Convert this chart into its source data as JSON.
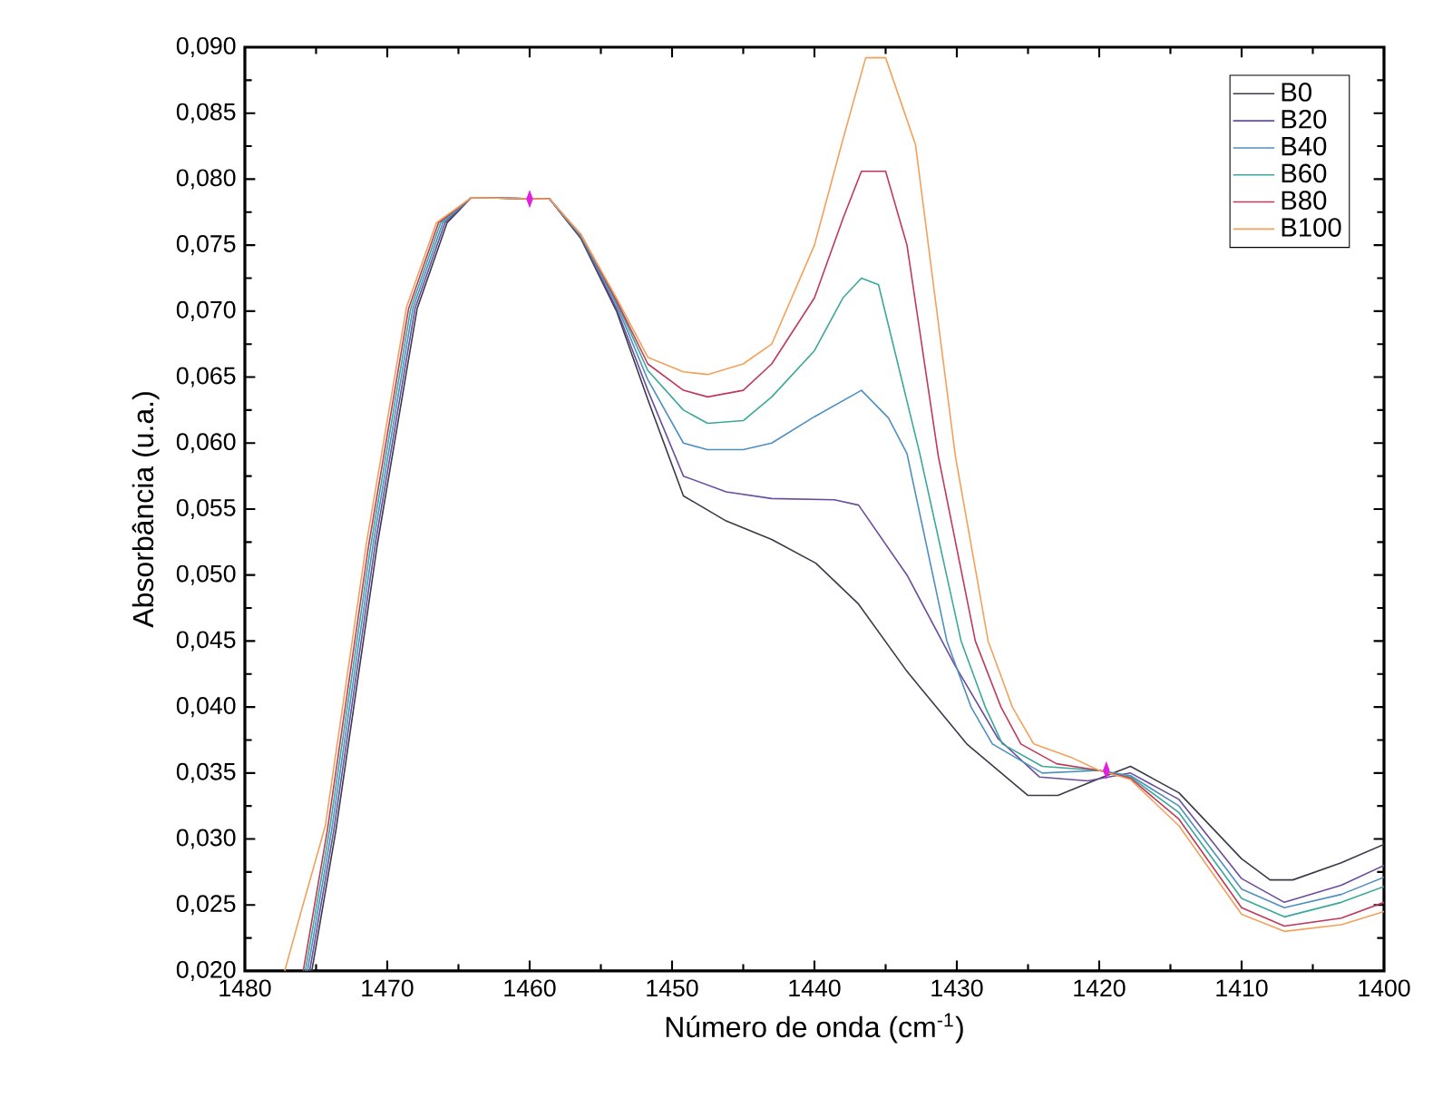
{
  "chart_data": {
    "type": "line",
    "xlabel": "Número de onda (cm$^{-1}$)",
    "ylabel": "Absorbância (u.a.)",
    "xlim": [
      1480,
      1400
    ],
    "ylim": [
      0.02,
      0.09
    ],
    "xticks": [
      1480,
      1470,
      1460,
      1450,
      1440,
      1430,
      1420,
      1410,
      1400
    ],
    "yticks": [
      {
        "value": 0.02,
        "label": "0,020"
      },
      {
        "value": 0.025,
        "label": "0,025"
      },
      {
        "value": 0.03,
        "label": "0,030"
      },
      {
        "value": 0.035,
        "label": "0,035"
      },
      {
        "value": 0.04,
        "label": "0,040"
      },
      {
        "value": 0.045,
        "label": "0,045"
      },
      {
        "value": 0.05,
        "label": "0,050"
      },
      {
        "value": 0.055,
        "label": "0,055"
      },
      {
        "value": 0.06,
        "label": "0,060"
      },
      {
        "value": 0.065,
        "label": "0,065"
      },
      {
        "value": 0.07,
        "label": "0,070"
      },
      {
        "value": 0.075,
        "label": "0,075"
      },
      {
        "value": 0.08,
        "label": "0,080"
      },
      {
        "value": 0.085,
        "label": "0,085"
      },
      {
        "value": 0.09,
        "label": "0,090"
      }
    ],
    "legend": "top right",
    "series": [
      {
        "name": "B0",
        "color": "#3a3a4a",
        "x": [
          1475.3,
          1473.6,
          1470.7,
          1467.9,
          1465.8,
          1464.1,
          1458.6,
          1456.4,
          1453.9,
          1451.7,
          1449.2,
          1446.2,
          1443,
          1439.9,
          1436.9,
          1433.5,
          1429.3,
          1425.0,
          1422.9,
          1419.5,
          1417.8,
          1414.4,
          1410,
          1408.0,
          1406.4,
          1403,
          1400
        ],
        "values": [
          0.02,
          0.0307,
          0.0523,
          0.0702,
          0.0767,
          0.0786,
          0.0785,
          0.0755,
          0.07,
          0.0633,
          0.056,
          0.0541,
          0.0527,
          0.0509,
          0.0478,
          0.0427,
          0.0372,
          0.0333,
          0.0333,
          0.0348,
          0.0355,
          0.0335,
          0.0285,
          0.0269,
          0.0269,
          0.0282,
          0.0296
        ]
      },
      {
        "name": "B20",
        "color": "#6a4c9c",
        "x": [
          1475.45,
          1473.75,
          1470.85,
          1468.05,
          1465.95,
          1464.1,
          1458.6,
          1456.4,
          1453.9,
          1451.7,
          1449.2,
          1446.2,
          1443,
          1438.6,
          1436.9,
          1433.5,
          1430.1,
          1427.1,
          1424.2,
          1420.8,
          1417.8,
          1414.4,
          1410,
          1407,
          1403,
          1400
        ],
        "values": [
          0.02,
          0.0307,
          0.0523,
          0.0702,
          0.0767,
          0.0786,
          0.0785,
          0.0756,
          0.0702,
          0.064,
          0.0575,
          0.0563,
          0.0558,
          0.0557,
          0.0553,
          0.05,
          0.0431,
          0.0376,
          0.0347,
          0.0344,
          0.035,
          0.033,
          0.027,
          0.0252,
          0.0265,
          0.028
        ]
      },
      {
        "name": "B40",
        "color": "#4f8fc0",
        "x": [
          1475.6,
          1473.9,
          1471.0,
          1468.2,
          1466.1,
          1464.1,
          1458.6,
          1456.4,
          1453.9,
          1451.7,
          1449.2,
          1447.5,
          1445,
          1443,
          1440,
          1436.7,
          1434.8,
          1433.5,
          1430.7,
          1429.0,
          1427.5,
          1424,
          1420,
          1417.8,
          1414.4,
          1410,
          1407,
          1403,
          1400
        ],
        "values": [
          0.02,
          0.0307,
          0.0523,
          0.0702,
          0.0767,
          0.0786,
          0.0785,
          0.0757,
          0.0705,
          0.0648,
          0.06,
          0.0595,
          0.0595,
          0.06,
          0.062,
          0.064,
          0.0619,
          0.0592,
          0.045,
          0.04,
          0.0372,
          0.035,
          0.0352,
          0.0348,
          0.0325,
          0.0262,
          0.0248,
          0.0258,
          0.0271
        ]
      },
      {
        "name": "B60",
        "color": "#3aa89a",
        "x": [
          1475.75,
          1474.05,
          1471.15,
          1468.35,
          1466.25,
          1464.1,
          1458.6,
          1456.4,
          1453.9,
          1451.7,
          1449.2,
          1447.5,
          1445,
          1443,
          1440,
          1438,
          1436.7,
          1435.5,
          1432.6,
          1429.7,
          1428.0,
          1426.8,
          1424,
          1420,
          1417.8,
          1414.4,
          1410,
          1407,
          1403,
          1400
        ],
        "values": [
          0.02,
          0.0307,
          0.0523,
          0.0702,
          0.0767,
          0.0786,
          0.0785,
          0.0757,
          0.0707,
          0.0655,
          0.0625,
          0.0615,
          0.0617,
          0.0635,
          0.067,
          0.071,
          0.0725,
          0.072,
          0.0592,
          0.045,
          0.04,
          0.0372,
          0.0355,
          0.0352,
          0.0347,
          0.032,
          0.0255,
          0.0241,
          0.0252,
          0.0264
        ]
      },
      {
        "name": "B80",
        "color": "#c0395a",
        "x": [
          1475.9,
          1474.2,
          1471.3,
          1468.5,
          1466.4,
          1464.1,
          1458.6,
          1456.4,
          1453.9,
          1451.7,
          1449.2,
          1447.5,
          1445,
          1443,
          1440,
          1438,
          1436.7,
          1435.0,
          1433.5,
          1431.3,
          1428.7,
          1426.9,
          1425.5,
          1423,
          1420,
          1417.8,
          1414.4,
          1410,
          1407,
          1403,
          1400
        ],
        "values": [
          0.02,
          0.0307,
          0.0523,
          0.0702,
          0.0767,
          0.0786,
          0.0785,
          0.0758,
          0.0708,
          0.066,
          0.064,
          0.0635,
          0.064,
          0.066,
          0.071,
          0.077,
          0.0806,
          0.0806,
          0.075,
          0.059,
          0.045,
          0.04,
          0.0372,
          0.0357,
          0.0352,
          0.0346,
          0.0315,
          0.0248,
          0.0234,
          0.024,
          0.0252
        ]
      },
      {
        "name": "B100",
        "color": "#f5a05a",
        "x": [
          1477.2,
          1476.05,
          1474.35,
          1471.45,
          1468.65,
          1466.55,
          1464.1,
          1458.6,
          1456.4,
          1453.9,
          1451.7,
          1449.2,
          1447.5,
          1445,
          1443,
          1440,
          1438,
          1436.4,
          1435.0,
          1432.9,
          1430.1,
          1427.8,
          1426.1,
          1424.6,
          1422,
          1420,
          1417.8,
          1414.4,
          1410,
          1407,
          1403,
          1400
        ],
        "values": [
          0.02,
          0.0245,
          0.031,
          0.0525,
          0.0703,
          0.0767,
          0.0786,
          0.0785,
          0.0758,
          0.071,
          0.0665,
          0.0654,
          0.0652,
          0.066,
          0.0675,
          0.075,
          0.083,
          0.0892,
          0.0892,
          0.0826,
          0.059,
          0.045,
          0.04,
          0.0372,
          0.0362,
          0.0352,
          0.0345,
          0.031,
          0.0243,
          0.023,
          0.0235,
          0.0245
        ]
      },
      {
        "type": "scatter",
        "color": "#e020e0",
        "marker": "diamond",
        "x": [
          1460,
          1419.5
        ],
        "values": [
          0.0785,
          0.0352
        ]
      }
    ]
  }
}
